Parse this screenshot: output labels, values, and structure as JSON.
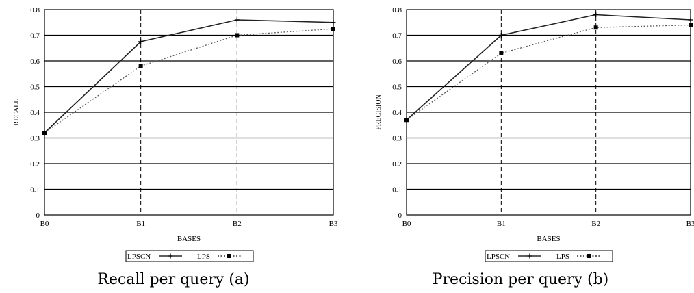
{
  "chart_data": [
    {
      "type": "line",
      "caption": "Recall per query (a)",
      "xlabel": "BASES",
      "ylabel": "RECALL",
      "categories": [
        "B0",
        "B1",
        "B2",
        "B3"
      ],
      "ylim": [
        0,
        0.8
      ],
      "yticks": [
        "0",
        "0.1",
        "0.2",
        "0.3",
        "0.4",
        "0.5",
        "0.6",
        "0.7",
        "0.8"
      ],
      "grid": true,
      "legend_position": "bottom",
      "series": [
        {
          "name": "LPSCN",
          "values": [
            0.32,
            0.675,
            0.76,
            0.75
          ],
          "style": "solid",
          "marker": "plus"
        },
        {
          "name": "LPS",
          "values": [
            0.32,
            0.58,
            0.7,
            0.725
          ],
          "style": "dotted",
          "marker": "square"
        }
      ]
    },
    {
      "type": "line",
      "caption": "Precision per query (b)",
      "xlabel": "BASES",
      "ylabel": "PRECISION",
      "categories": [
        "B0",
        "B1",
        "B2",
        "B3"
      ],
      "ylim": [
        0,
        0.8
      ],
      "yticks": [
        "0",
        "0.1",
        "0.2",
        "0.3",
        "0.4",
        "0.5",
        "0.6",
        "0.7",
        "0.8"
      ],
      "grid": true,
      "legend_position": "bottom",
      "series": [
        {
          "name": "LPSCN",
          "values": [
            0.37,
            0.7,
            0.78,
            0.76
          ],
          "style": "solid",
          "marker": "plus"
        },
        {
          "name": "LPS",
          "values": [
            0.37,
            0.63,
            0.73,
            0.74
          ],
          "style": "dotted",
          "marker": "square"
        }
      ]
    }
  ]
}
